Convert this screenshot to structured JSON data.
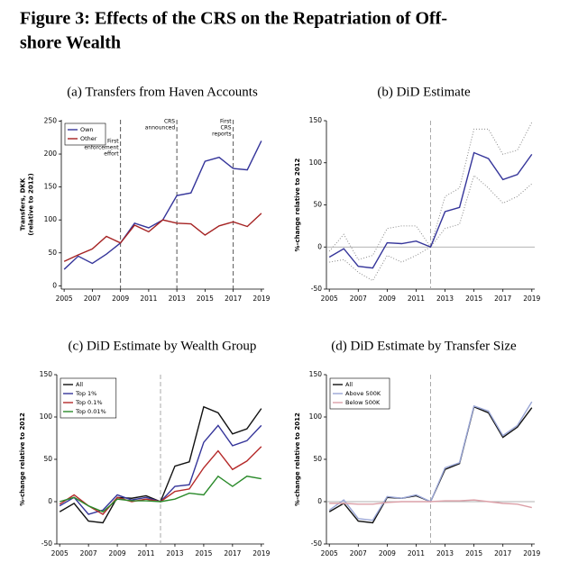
{
  "title_lines": [
    "Figure 3: Effects of the CRS on the Repatriation of Off-",
    "shore Wealth"
  ],
  "chart_data": [
    {
      "type": "line",
      "subtitle": "(a) Transfers from Haven Accounts",
      "ylabel_lines": [
        "Transfers, DKK",
        "(relative to 2012)"
      ],
      "x": [
        2005,
        2006,
        2007,
        2008,
        2009,
        2010,
        2011,
        2012,
        2013,
        2014,
        2015,
        2016,
        2017,
        2018,
        2019
      ],
      "xlim": [
        2004.8,
        2019.2
      ],
      "xticks": [
        2005,
        2007,
        2009,
        2011,
        2013,
        2015,
        2017,
        2019
      ],
      "ylim": [
        -5,
        252
      ],
      "yticks": [
        0,
        50,
        100,
        150,
        200,
        250
      ],
      "series": [
        {
          "name": "Own",
          "color": "#35359a",
          "values": [
            25,
            45,
            34,
            48,
            65,
            95,
            88,
            100,
            137,
            141,
            189,
            195,
            178,
            176,
            220
          ]
        },
        {
          "name": "Other",
          "color": "#a52222",
          "values": [
            37,
            47,
            56,
            75,
            65,
            92,
            82,
            100,
            95,
            94,
            77,
            91,
            97,
            90,
            110
          ]
        }
      ],
      "vlines": [
        2009,
        2013,
        2017
      ],
      "vline_color": "#555555",
      "annotations": [
        {
          "x": 2009,
          "lines": [
            "First",
            "enforcement",
            "effort"
          ]
        },
        {
          "x": 2013,
          "lines": [
            "CRS",
            "announced"
          ]
        },
        {
          "x": 2017,
          "lines": [
            "First",
            "CRS",
            "reports"
          ]
        }
      ],
      "legend": "upper left"
    },
    {
      "type": "line",
      "subtitle": "(b) DiD Estimate",
      "ylabel_lines": [
        "%-change relative to 2012"
      ],
      "x": [
        2005,
        2006,
        2007,
        2008,
        2009,
        2010,
        2011,
        2012,
        2013,
        2014,
        2015,
        2016,
        2017,
        2018,
        2019
      ],
      "xlim": [
        2004.8,
        2019.2
      ],
      "xticks": [
        2005,
        2007,
        2009,
        2011,
        2013,
        2015,
        2017,
        2019
      ],
      "ylim": [
        -50,
        150
      ],
      "yticks": [
        -50,
        0,
        50,
        100,
        150
      ],
      "series": [
        {
          "color": "#35359a",
          "values": [
            -12,
            -2,
            -23,
            -25,
            5,
            4,
            7,
            0,
            42,
            47,
            112,
            105,
            80,
            86,
            110
          ]
        }
      ],
      "ci_upper": [
        -5,
        15,
        -15,
        -10,
        22,
        25,
        25,
        0,
        60,
        70,
        140,
        140,
        110,
        115,
        148
      ],
      "ci_lower": [
        -18,
        -15,
        -30,
        -40,
        -10,
        -18,
        -10,
        0,
        22,
        27,
        85,
        70,
        52,
        60,
        75
      ],
      "ci_color": "#888888",
      "vlines": [
        2012
      ],
      "vline_color": "#aaaaaa",
      "hline": 0
    },
    {
      "type": "line",
      "subtitle": "(c) DiD Estimate by Wealth Group",
      "ylabel_lines": [
        "%-change relative to 2012"
      ],
      "x": [
        2005,
        2006,
        2007,
        2008,
        2009,
        2010,
        2011,
        2012,
        2013,
        2014,
        2015,
        2016,
        2017,
        2018,
        2019
      ],
      "xlim": [
        2004.8,
        2019.2
      ],
      "xticks": [
        2005,
        2007,
        2009,
        2011,
        2013,
        2015,
        2017,
        2019
      ],
      "ylim": [
        -50,
        150
      ],
      "yticks": [
        -50,
        0,
        50,
        100,
        150
      ],
      "series": [
        {
          "name": "All",
          "color": "#111111",
          "values": [
            -12,
            -2,
            -23,
            -25,
            5,
            4,
            7,
            0,
            42,
            47,
            112,
            105,
            80,
            86,
            110
          ]
        },
        {
          "name": "Top 1%",
          "color": "#35359a",
          "values": [
            -5,
            5,
            -15,
            -10,
            8,
            2,
            5,
            0,
            18,
            20,
            70,
            90,
            66,
            72,
            90
          ]
        },
        {
          "name": "Top 0.1%",
          "color": "#b52a2a",
          "values": [
            -3,
            8,
            -5,
            -15,
            5,
            0,
            3,
            0,
            12,
            15,
            40,
            60,
            38,
            48,
            65
          ]
        },
        {
          "name": "Top 0.01%",
          "color": "#2a8a2a",
          "values": [
            0,
            5,
            -5,
            -12,
            3,
            1,
            1,
            0,
            3,
            10,
            8,
            30,
            18,
            30,
            27
          ]
        }
      ],
      "vlines": [
        2012
      ],
      "vline_color": "#aaaaaa",
      "legend": "upper left"
    },
    {
      "type": "line",
      "subtitle": "(d) DiD Estimate by Transfer Size",
      "ylabel_lines": [
        "%-change relative to 2012"
      ],
      "x": [
        2005,
        2006,
        2007,
        2008,
        2009,
        2010,
        2011,
        2012,
        2013,
        2014,
        2015,
        2016,
        2017,
        2018,
        2019
      ],
      "xlim": [
        2004.8,
        2019.2
      ],
      "xticks": [
        2005,
        2007,
        2009,
        2011,
        2013,
        2015,
        2017,
        2019
      ],
      "ylim": [
        -50,
        150
      ],
      "yticks": [
        -50,
        0,
        50,
        100,
        150
      ],
      "series": [
        {
          "name": "All",
          "color": "#111111",
          "values": [
            -12,
            -2,
            -23,
            -25,
            5,
            4,
            7,
            0,
            38,
            45,
            112,
            105,
            76,
            88,
            111
          ]
        },
        {
          "name": "Above 500K",
          "color": "#9aa6d6",
          "values": [
            -10,
            2,
            -20,
            -22,
            6,
            4,
            8,
            0,
            40,
            46,
            113,
            107,
            78,
            90,
            118
          ]
        },
        {
          "name": "Below 500K",
          "color": "#dca0a8",
          "values": [
            -2,
            -2,
            -3,
            -3,
            -1,
            0,
            0,
            0,
            1,
            1,
            2,
            0,
            -2,
            -3,
            -7
          ]
        }
      ],
      "vlines": [
        2012
      ],
      "vline_color": "#aaaaaa",
      "hline": 0,
      "legend": "upper left"
    }
  ]
}
